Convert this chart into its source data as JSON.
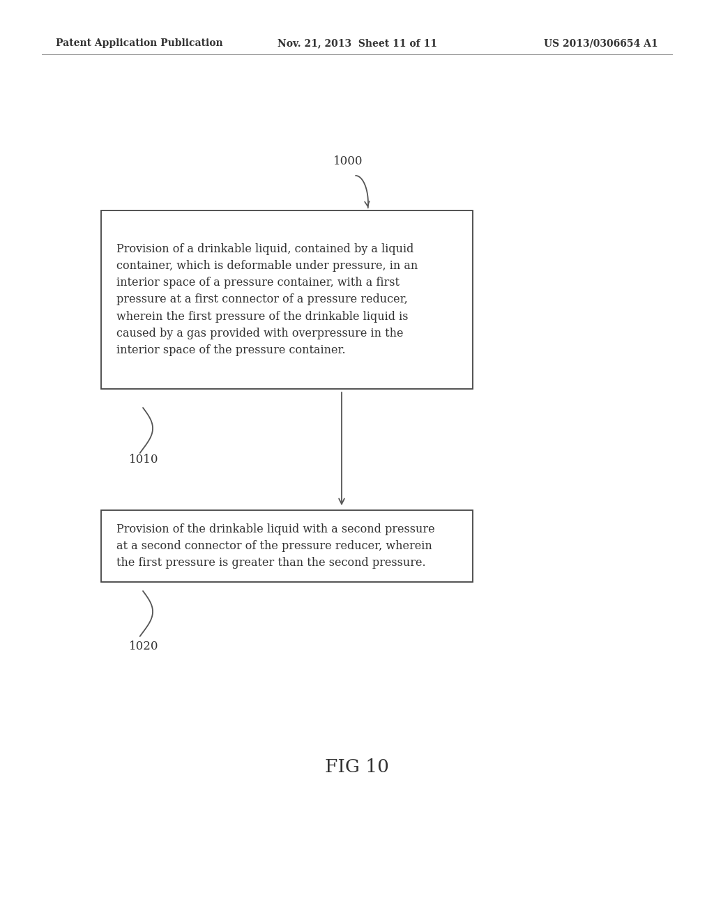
{
  "bg_color": "#ffffff",
  "header_left": "Patent Application Publication",
  "header_center": "Nov. 21, 2013  Sheet 11 of 11",
  "header_right": "US 2013/0306654 A1",
  "box1_text": "Provision of a drinkable liquid, contained by a liquid\ncontainer, which is deformable under pressure, in an\ninterior space of a pressure container, with a first\npressure at a first connector of a pressure reducer,\nwherein the first pressure of the drinkable liquid is\ncaused by a gas provided with overpressure in the\ninterior space of the pressure container.",
  "box2_text": "Provision of the drinkable liquid with a second pressure\nat a second connector of the pressure reducer, wherein\nthe first pressure is greater than the second pressure.",
  "fig_label": "FIG 10",
  "label_1000": "1000",
  "label_1010": "1010",
  "label_1020": "1020",
  "text_color": "#333333",
  "edge_color": "#444444",
  "arrow_color": "#555555"
}
